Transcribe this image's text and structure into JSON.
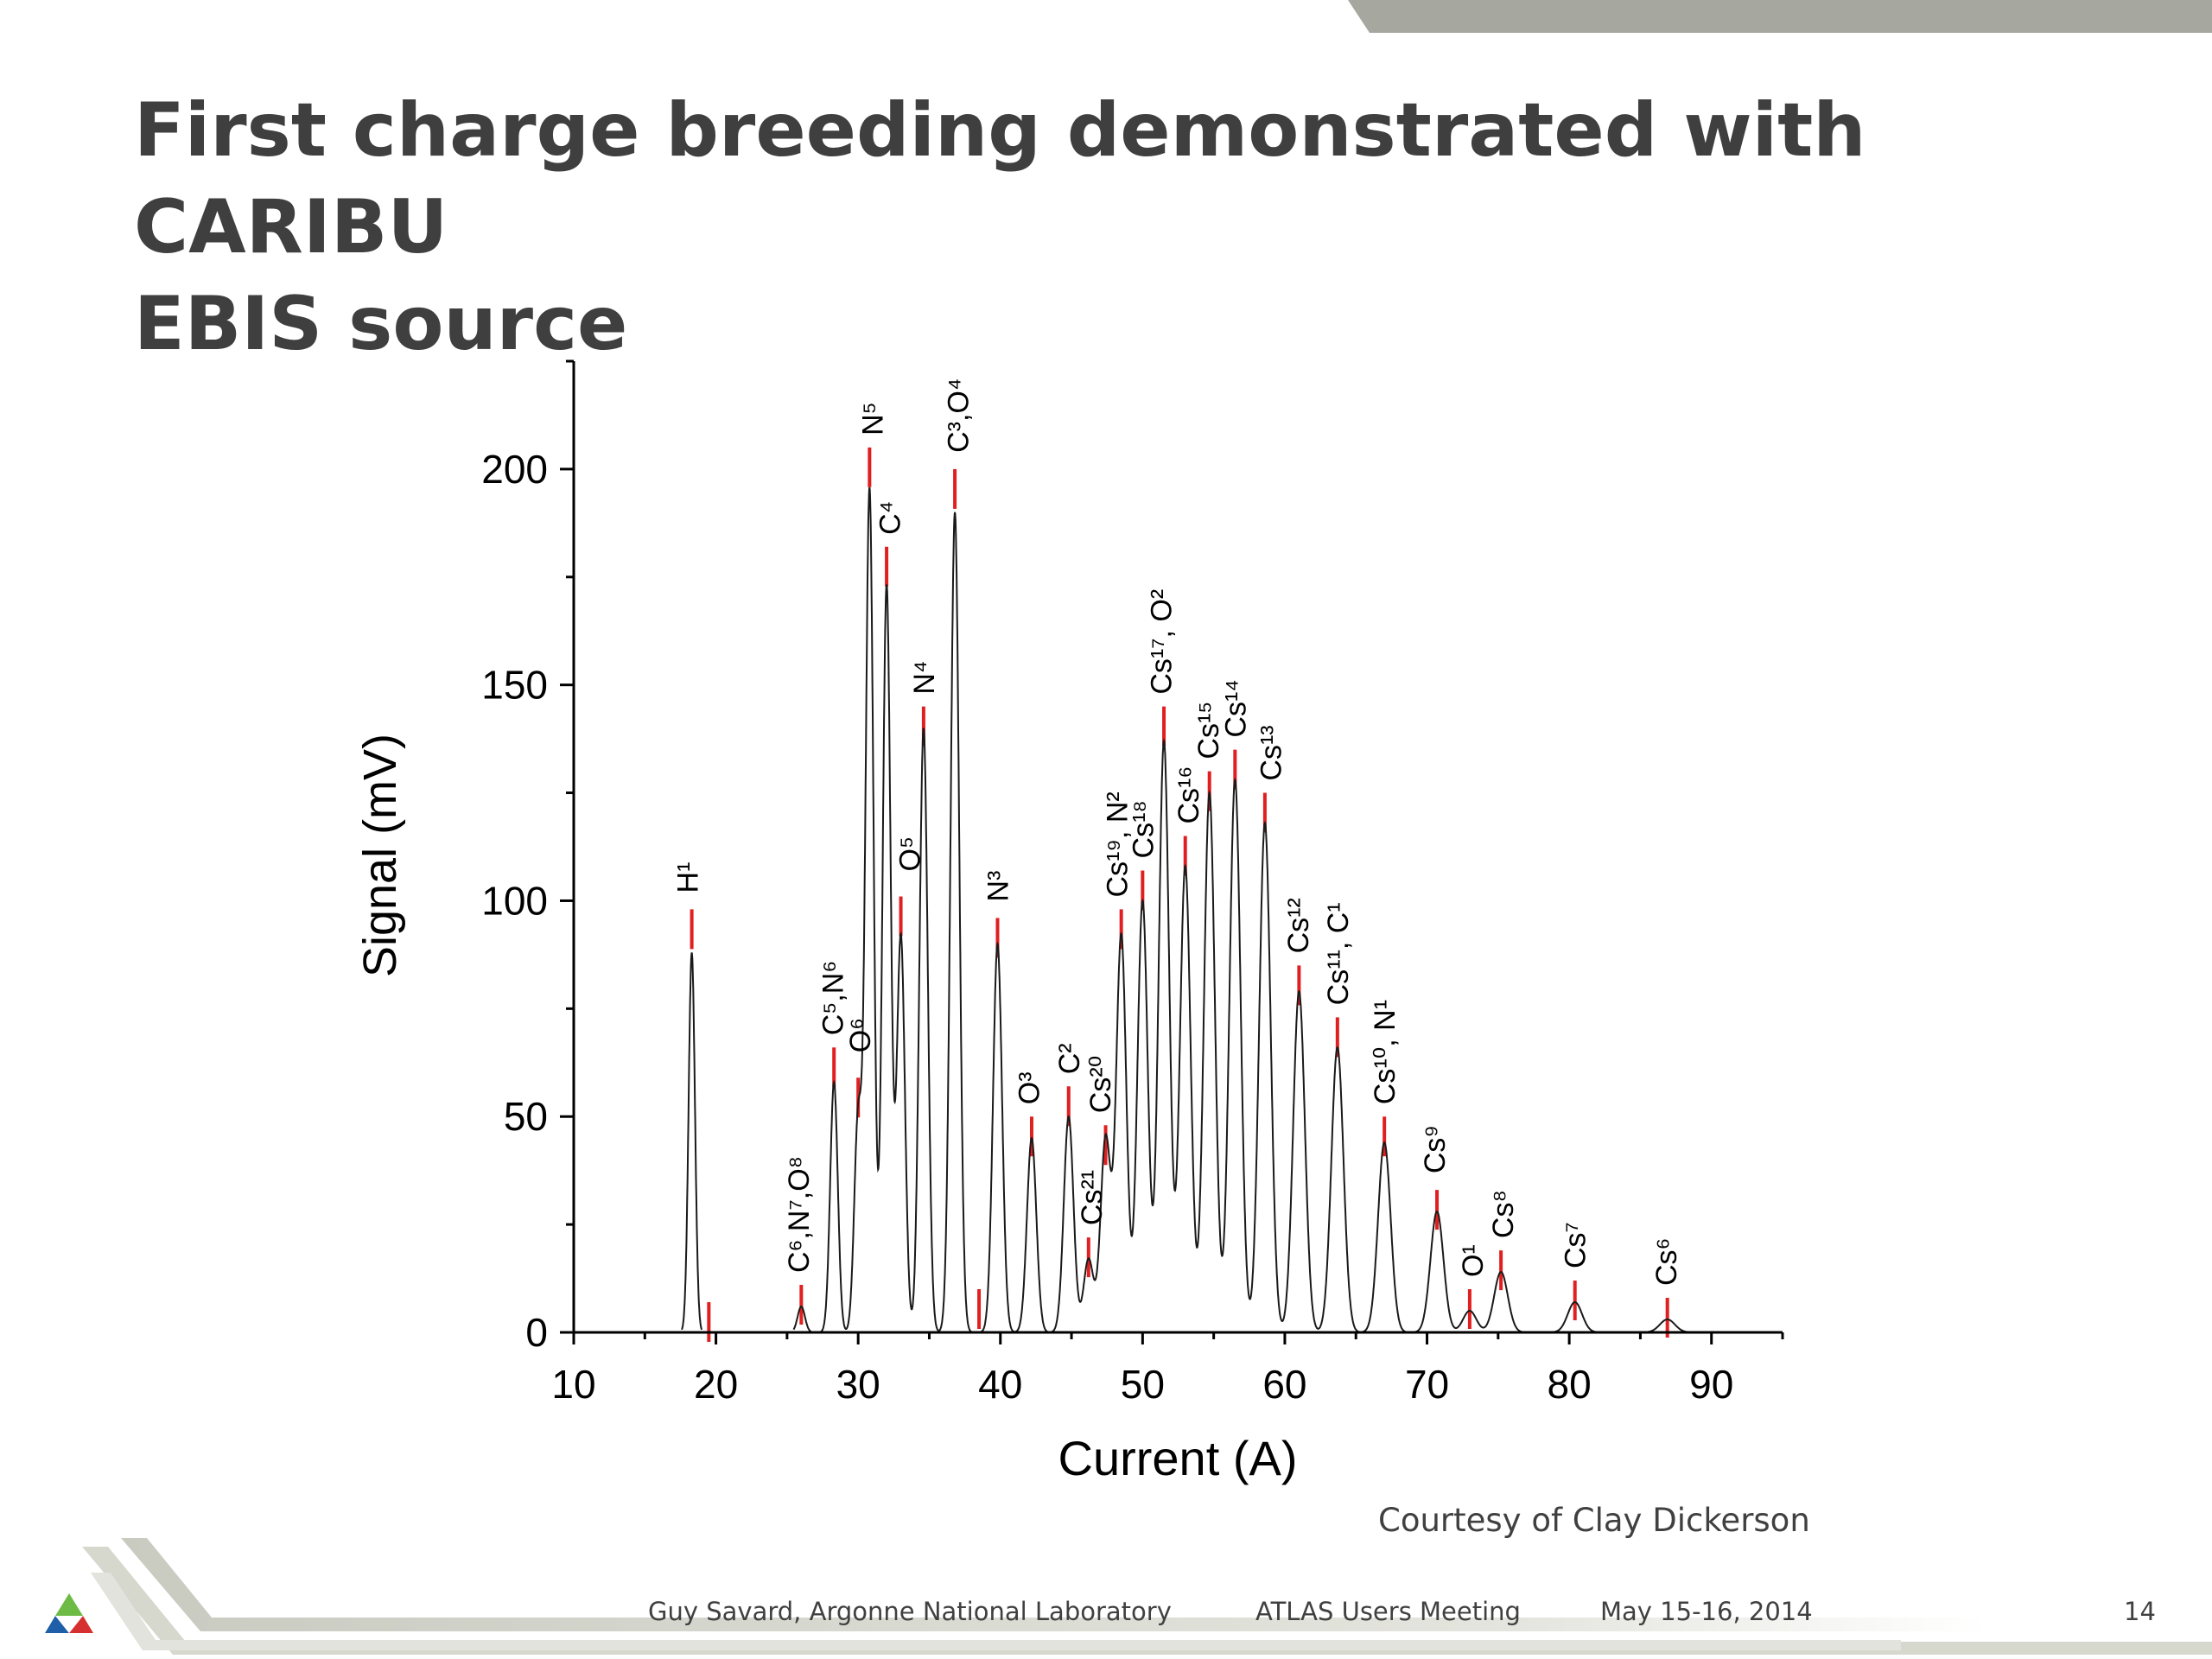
{
  "slide": {
    "title_line1": "First charge breeding demonstrated with CARIBU",
    "title_line2": "EBIS source",
    "courtesy": "Courtesy of Clay Dickerson",
    "page_number": "14"
  },
  "footer": {
    "author": "Guy Savard, Argonne National Laboratory",
    "event": "ATLAS Users Meeting",
    "date": "May 15-16, 2014"
  },
  "colors": {
    "title": "#3f3f3f",
    "trace": "#1a1a1a",
    "marker": "#e02020",
    "decor_gray": "#a6a8a0",
    "decor_light": "#d6d8ce"
  },
  "chart_data": {
    "type": "line",
    "xlabel": "Current (A)",
    "ylabel": "Signal (mV)",
    "xlim": [
      10,
      95
    ],
    "ylim": [
      0,
      225
    ],
    "x_ticks": [
      10,
      20,
      30,
      40,
      50,
      60,
      70,
      80,
      90
    ],
    "y_ticks": [
      0,
      50,
      100,
      150,
      200
    ],
    "grid": false,
    "legend": "none",
    "peaks": [
      {
        "x": 18.3,
        "y": 88
      },
      {
        "x": 26.0,
        "y": 6
      },
      {
        "x": 28.3,
        "y": 58
      },
      {
        "x": 30.0,
        "y": 50
      },
      {
        "x": 30.8,
        "y": 195
      },
      {
        "x": 32.0,
        "y": 173
      },
      {
        "x": 33.0,
        "y": 92
      },
      {
        "x": 34.6,
        "y": 140
      },
      {
        "x": 36.8,
        "y": 190
      },
      {
        "x": 39.8,
        "y": 90
      },
      {
        "x": 42.2,
        "y": 45
      },
      {
        "x": 44.8,
        "y": 50
      },
      {
        "x": 46.2,
        "y": 17
      },
      {
        "x": 47.4,
        "y": 45
      },
      {
        "x": 48.5,
        "y": 92
      },
      {
        "x": 50.0,
        "y": 100
      },
      {
        "x": 51.5,
        "y": 137
      },
      {
        "x": 53.0,
        "y": 108
      },
      {
        "x": 54.7,
        "y": 125
      },
      {
        "x": 56.5,
        "y": 128
      },
      {
        "x": 58.6,
        "y": 118
      },
      {
        "x": 61.0,
        "y": 79
      },
      {
        "x": 63.7,
        "y": 66
      },
      {
        "x": 67.0,
        "y": 44
      },
      {
        "x": 70.7,
        "y": 28
      },
      {
        "x": 73.0,
        "y": 5
      },
      {
        "x": 75.2,
        "y": 14
      },
      {
        "x": 80.4,
        "y": 7
      },
      {
        "x": 86.9,
        "y": 3
      }
    ],
    "markers": [
      {
        "x": 18.3,
        "y": 98
      },
      {
        "x": 19.5,
        "y": 7
      },
      {
        "x": 26.0,
        "y": 11
      },
      {
        "x": 28.3,
        "y": 66
      },
      {
        "x": 30.0,
        "y": 59
      },
      {
        "x": 30.8,
        "y": 205
      },
      {
        "x": 32.0,
        "y": 182
      },
      {
        "x": 33.0,
        "y": 101
      },
      {
        "x": 34.6,
        "y": 145
      },
      {
        "x": 36.8,
        "y": 200
      },
      {
        "x": 38.5,
        "y": 10
      },
      {
        "x": 39.8,
        "y": 96
      },
      {
        "x": 42.2,
        "y": 50
      },
      {
        "x": 44.8,
        "y": 57
      },
      {
        "x": 46.2,
        "y": 22
      },
      {
        "x": 47.4,
        "y": 48
      },
      {
        "x": 48.5,
        "y": 98
      },
      {
        "x": 50.0,
        "y": 107
      },
      {
        "x": 51.5,
        "y": 145
      },
      {
        "x": 53.0,
        "y": 115
      },
      {
        "x": 54.7,
        "y": 130
      },
      {
        "x": 56.5,
        "y": 135
      },
      {
        "x": 58.6,
        "y": 125
      },
      {
        "x": 61.0,
        "y": 85
      },
      {
        "x": 63.7,
        "y": 73
      },
      {
        "x": 67.0,
        "y": 50
      },
      {
        "x": 70.7,
        "y": 33
      },
      {
        "x": 73.0,
        "y": 10
      },
      {
        "x": 75.2,
        "y": 19
      },
      {
        "x": 80.4,
        "y": 12
      },
      {
        "x": 86.9,
        "y": 8
      }
    ],
    "annotations": [
      {
        "text": "H¹",
        "x": 18.0,
        "y": 101
      },
      {
        "text": "C⁶,N⁷,O⁸",
        "x": 25.8,
        "y": 13
      },
      {
        "text": "C⁵,N⁶",
        "x": 28.2,
        "y": 68
      },
      {
        "text": "O⁶",
        "x": 30.1,
        "y": 64
      },
      {
        "text": "N⁵",
        "x": 31.0,
        "y": 207
      },
      {
        "text": "C⁴",
        "x": 32.2,
        "y": 184
      },
      {
        "text": "O⁵",
        "x": 33.6,
        "y": 106
      },
      {
        "text": "N⁴",
        "x": 34.6,
        "y": 147
      },
      {
        "text": "C³,O⁴",
        "x": 37.0,
        "y": 203
      },
      {
        "text": "N³",
        "x": 39.8,
        "y": 99
      },
      {
        "text": "O³",
        "x": 42.0,
        "y": 52
      },
      {
        "text": "C²",
        "x": 44.8,
        "y": 59
      },
      {
        "text": "Cs²¹",
        "x": 46.4,
        "y": 24
      },
      {
        "text": "Cs²⁰",
        "x": 47.0,
        "y": 50
      },
      {
        "text": "Cs¹⁹, N²",
        "x": 48.2,
        "y": 100
      },
      {
        "text": "Cs¹⁸",
        "x": 50.0,
        "y": 109
      },
      {
        "text": "Cs¹⁷, O²",
        "x": 51.3,
        "y": 147
      },
      {
        "text": "Cs¹⁶",
        "x": 53.2,
        "y": 117
      },
      {
        "text": "Cs¹⁵",
        "x": 54.6,
        "y": 132
      },
      {
        "text": "Cs¹⁴",
        "x": 56.5,
        "y": 137
      },
      {
        "text": "Cs¹³",
        "x": 59.0,
        "y": 127
      },
      {
        "text": "Cs¹²",
        "x": 60.9,
        "y": 87
      },
      {
        "text": "Cs¹¹, C¹",
        "x": 63.7,
        "y": 75
      },
      {
        "text": "Cs¹⁰, N¹",
        "x": 67.0,
        "y": 52
      },
      {
        "text": "Cs⁹",
        "x": 70.5,
        "y": 36
      },
      {
        "text": "O¹",
        "x": 73.2,
        "y": 12
      },
      {
        "text": "Cs⁸",
        "x": 75.3,
        "y": 21
      },
      {
        "text": "Cs⁷",
        "x": 80.4,
        "y": 14
      },
      {
        "text": "Cs⁶",
        "x": 86.8,
        "y": 10
      }
    ]
  }
}
